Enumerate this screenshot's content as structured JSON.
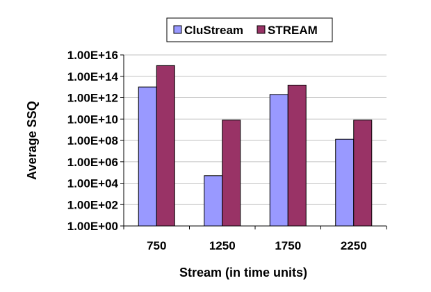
{
  "chart_data": {
    "type": "bar",
    "y_scale": "log10",
    "xlabel": "Stream (in time units)",
    "ylabel": "Average SSQ",
    "categories": [
      "750",
      "1250",
      "1750",
      "2250"
    ],
    "series": [
      {
        "name": "CluStream",
        "color": "#9999ff",
        "values": [
          10000000000000.0,
          50000.0,
          2000000000000.0,
          130000000.0
        ]
      },
      {
        "name": "STREAM",
        "color": "#993366",
        "values": [
          1000000000000000.0,
          8000000000.0,
          15000000000000.0,
          8000000000.0
        ]
      }
    ],
    "ylim": [
      1,
      1e+16
    ],
    "yticks": [
      "1.00E+00",
      "1.00E+02",
      "1.00E+04",
      "1.00E+06",
      "1.00E+08",
      "1.00E+10",
      "1.00E+12",
      "1.00E+14",
      "1.00E+16"
    ],
    "grid": true,
    "legend_position": "top"
  }
}
